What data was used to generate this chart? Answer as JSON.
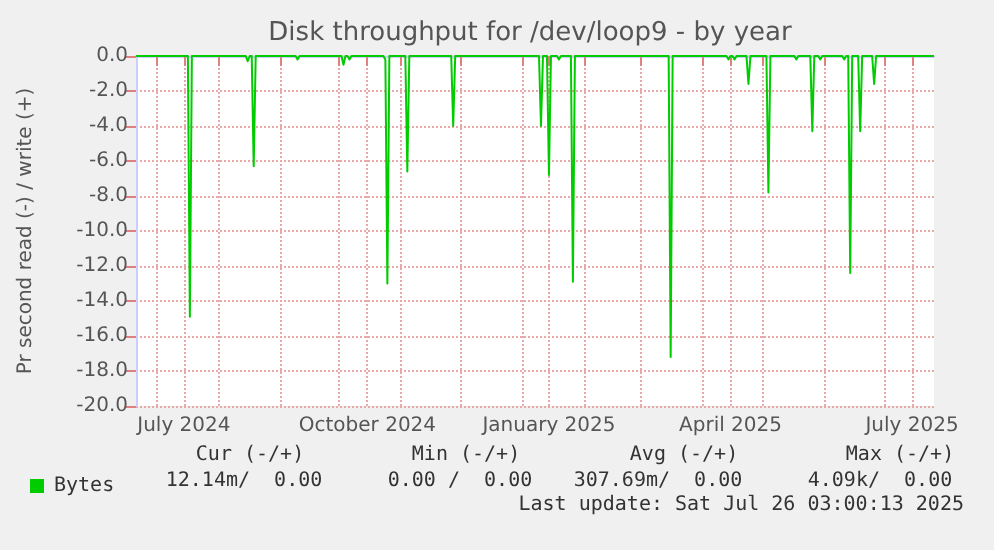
{
  "chart_data": {
    "type": "line",
    "title": "Disk throughput for /dev/loop9 - by year",
    "ylabel": "Pr second read (-) / write (+)",
    "x": [
      "2024-06-21",
      "2024-07-17",
      "2024-07-18",
      "2024-07-19",
      "2024-08-15",
      "2024-08-16",
      "2024-08-17",
      "2024-08-18",
      "2024-08-19",
      "2024-08-20",
      "2024-09-09",
      "2024-09-10",
      "2024-09-11",
      "2024-10-02",
      "2024-10-03",
      "2024-10-04",
      "2024-10-05",
      "2024-10-06",
      "2024-10-07",
      "2024-10-23",
      "2024-10-24",
      "2024-10-25",
      "2024-10-26",
      "2024-11-03",
      "2024-11-04",
      "2024-11-05",
      "2024-11-26",
      "2024-11-27",
      "2024-11-28",
      "2025-01-09",
      "2025-01-10",
      "2025-01-11",
      "2025-01-13",
      "2025-01-14",
      "2025-01-15",
      "2025-01-18",
      "2025-01-19",
      "2025-01-20",
      "2025-01-25",
      "2025-01-26",
      "2025-01-27",
      "2025-03-15",
      "2025-03-16",
      "2025-03-17",
      "2025-04-13",
      "2025-04-14",
      "2025-04-15",
      "2025-04-16",
      "2025-04-17",
      "2025-04-18",
      "2025-04-23",
      "2025-04-24",
      "2025-04-25",
      "2025-05-03",
      "2025-05-04",
      "2025-05-05",
      "2025-05-17",
      "2025-05-18",
      "2025-05-19",
      "2025-05-25",
      "2025-05-26",
      "2025-05-27",
      "2025-05-29",
      "2025-05-30",
      "2025-05-31",
      "2025-06-10",
      "2025-06-11",
      "2025-06-12",
      "2025-06-13",
      "2025-06-14",
      "2025-06-15",
      "2025-06-18",
      "2025-06-19",
      "2025-06-20",
      "2025-06-25",
      "2025-06-26",
      "2025-06-27",
      "2025-07-26"
    ],
    "series": [
      {
        "name": "Bytes",
        "color": "#00cc00",
        "values": [
          0,
          0,
          -14.9,
          0,
          0,
          -0.3,
          0,
          0,
          -6.3,
          0,
          0,
          -0.2,
          0,
          0,
          -0.5,
          0,
          0,
          -0.2,
          0,
          0,
          -0.2,
          -13.0,
          0,
          0,
          -6.6,
          0,
          0,
          -4.0,
          0,
          0,
          -4.0,
          0,
          0,
          -6.8,
          0,
          0,
          -0.2,
          0,
          0,
          -12.9,
          0,
          0,
          -17.2,
          0,
          0,
          -0.2,
          0,
          0,
          -0.2,
          0,
          0,
          -1.6,
          0,
          0,
          -7.8,
          0,
          0,
          -0.2,
          0,
          0,
          -4.3,
          0,
          0,
          -0.2,
          0,
          0,
          -0.2,
          0,
          0,
          -12.4,
          0,
          0,
          -4.3,
          0,
          0,
          -1.6,
          0,
          0
        ]
      }
    ],
    "xlim": [
      "2024-06-21",
      "2025-07-26"
    ],
    "xticks": [
      {
        "value": "2024-07-01",
        "label": null
      },
      {
        "value": "2024-07-15",
        "label": "July 2024"
      },
      {
        "value": "2024-08-01",
        "label": null
      },
      {
        "value": "2024-09-01",
        "label": null
      },
      {
        "value": "2024-10-01",
        "label": null
      },
      {
        "value": "2024-10-15",
        "label": "October 2024"
      },
      {
        "value": "2024-11-01",
        "label": null
      },
      {
        "value": "2024-12-01",
        "label": null
      },
      {
        "value": "2025-01-01",
        "label": null
      },
      {
        "value": "2025-01-14",
        "label": "January 2025"
      },
      {
        "value": "2025-02-01",
        "label": null
      },
      {
        "value": "2025-03-01",
        "label": null
      },
      {
        "value": "2025-04-01",
        "label": null
      },
      {
        "value": "2025-04-15",
        "label": "April 2025"
      },
      {
        "value": "2025-05-01",
        "label": null
      },
      {
        "value": "2025-06-01",
        "label": null
      },
      {
        "value": "2025-07-01",
        "label": null
      },
      {
        "value": "2025-07-15",
        "label": "July 2025"
      }
    ],
    "ylim": [
      -20,
      0
    ],
    "yticks": [
      {
        "value": 0,
        "label": "0.0"
      },
      {
        "value": -2,
        "label": "-2.0"
      },
      {
        "value": -4,
        "label": "-4.0"
      },
      {
        "value": -6,
        "label": "-6.0"
      },
      {
        "value": -8,
        "label": "-8.0"
      },
      {
        "value": -10,
        "label": "-10.0"
      },
      {
        "value": -12,
        "label": "-12.0"
      },
      {
        "value": -14,
        "label": "-14.0"
      },
      {
        "value": -16,
        "label": "-16.0"
      },
      {
        "value": -18,
        "label": "-18.0"
      },
      {
        "value": -20,
        "label": "-20.0"
      }
    ],
    "grid": true,
    "legend": "bottom left",
    "marker": "none",
    "line_style": "solid",
    "annotations": [
      "Cur (-/+)",
      "Min (-/+)",
      "Avg (-/+)",
      "Max (-/+)",
      "12.14m/  0.00",
      "0.00 /  0.00",
      "307.69m/  0.00",
      "4.09k/  0.00",
      "Last update: Sat Jul 26 03:00:13 2025"
    ]
  }
}
